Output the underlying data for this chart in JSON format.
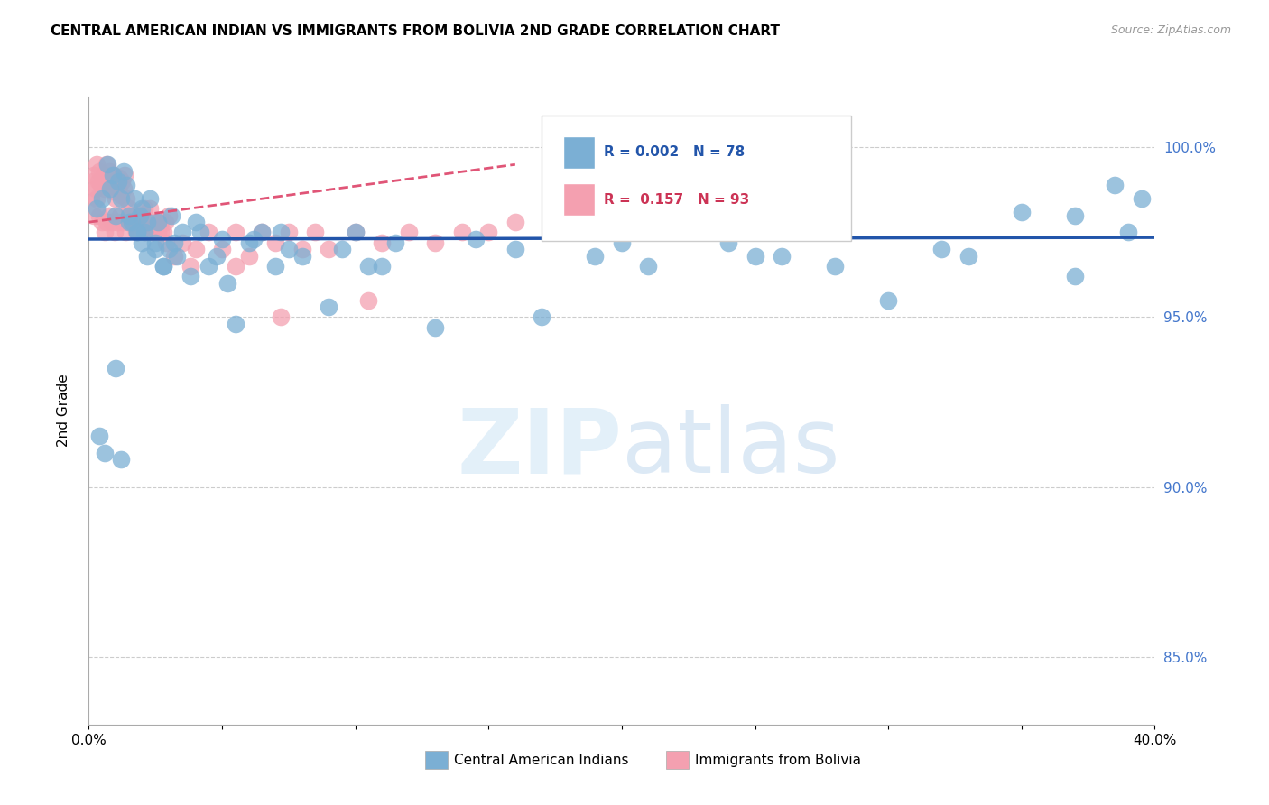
{
  "title": "CENTRAL AMERICAN INDIAN VS IMMIGRANTS FROM BOLIVIA 2ND GRADE CORRELATION CHART",
  "source": "Source: ZipAtlas.com",
  "ylabel": "2nd Grade",
  "ytick_values": [
    85.0,
    90.0,
    95.0,
    100.0
  ],
  "xlim": [
    0.0,
    40.0
  ],
  "ylim": [
    83.0,
    101.5
  ],
  "legend_label1": "Central American Indians",
  "legend_label2": "Immigrants from Bolivia",
  "color_blue": "#7bafd4",
  "color_pink": "#f4a0b0",
  "trendline_blue_color": "#2255aa",
  "trendline_pink_color": "#e05577",
  "blue_scatter_x": [
    0.3,
    0.5,
    0.7,
    0.8,
    0.9,
    1.0,
    1.1,
    1.2,
    1.3,
    1.4,
    1.5,
    1.6,
    1.7,
    1.8,
    1.9,
    2.0,
    2.1,
    2.2,
    2.3,
    2.5,
    2.6,
    2.8,
    3.0,
    3.1,
    3.3,
    3.5,
    3.8,
    4.0,
    4.2,
    4.5,
    5.0,
    5.2,
    5.5,
    6.0,
    6.5,
    7.0,
    7.5,
    8.0,
    9.0,
    10.0,
    10.5,
    11.5,
    13.0,
    14.5,
    16.0,
    17.0,
    19.0,
    21.0,
    24.0,
    26.0,
    28.0,
    30.0,
    32.0,
    33.0,
    35.0,
    37.0,
    38.5,
    39.5,
    0.4,
    0.6,
    1.0,
    1.2,
    1.5,
    1.8,
    2.0,
    2.2,
    2.5,
    2.8,
    3.2,
    4.8,
    6.2,
    7.2,
    9.5,
    11.0,
    20.0,
    25.0,
    37.0,
    39.0
  ],
  "blue_scatter_y": [
    98.2,
    98.5,
    99.5,
    98.8,
    99.2,
    98.0,
    99.0,
    98.5,
    99.3,
    98.9,
    98.0,
    97.8,
    98.5,
    97.5,
    98.0,
    98.2,
    97.5,
    97.8,
    98.5,
    97.2,
    97.8,
    96.5,
    97.0,
    98.0,
    96.8,
    97.5,
    96.2,
    97.8,
    97.5,
    96.5,
    97.3,
    96.0,
    94.8,
    97.2,
    97.5,
    96.5,
    97.0,
    96.8,
    95.3,
    97.5,
    96.5,
    97.2,
    94.7,
    97.3,
    97.0,
    95.0,
    96.8,
    96.5,
    97.2,
    96.8,
    96.5,
    95.5,
    97.0,
    96.8,
    98.1,
    96.2,
    98.9,
    98.5,
    91.5,
    91.0,
    93.5,
    90.8,
    97.8,
    97.5,
    97.2,
    96.8,
    97.0,
    96.5,
    97.2,
    96.8,
    97.3,
    97.5,
    97.0,
    96.5,
    97.2,
    96.8,
    98.0,
    97.5
  ],
  "pink_scatter_x": [
    0.1,
    0.15,
    0.2,
    0.25,
    0.3,
    0.35,
    0.4,
    0.45,
    0.5,
    0.55,
    0.6,
    0.65,
    0.7,
    0.75,
    0.8,
    0.85,
    0.9,
    0.95,
    1.0,
    1.05,
    1.1,
    1.15,
    1.2,
    1.25,
    1.3,
    1.35,
    1.4,
    1.5,
    1.6,
    1.7,
    1.8,
    1.9,
    2.0,
    2.1,
    2.2,
    2.3,
    2.4,
    2.5,
    2.7,
    2.9,
    3.0,
    3.2,
    3.5,
    3.8,
    4.0,
    4.5,
    5.0,
    5.5,
    6.0,
    6.5,
    7.0,
    7.5,
    8.0,
    8.5,
    9.0,
    10.0,
    11.0,
    12.0,
    13.0,
    14.0,
    15.0,
    16.0,
    0.18,
    0.28,
    0.38,
    0.48,
    0.58,
    0.68,
    0.78,
    0.88,
    0.98,
    1.08,
    1.18,
    1.28,
    1.38,
    1.48,
    1.58,
    1.68,
    1.78,
    1.88,
    1.98,
    2.08,
    2.18,
    2.28,
    2.38,
    2.48,
    2.58,
    2.68,
    2.78,
    2.88,
    5.5,
    7.2,
    10.5
  ],
  "pink_scatter_y": [
    98.5,
    99.0,
    99.2,
    98.8,
    99.5,
    99.0,
    99.3,
    98.9,
    99.0,
    99.2,
    98.8,
    99.5,
    99.0,
    99.3,
    98.9,
    99.1,
    98.7,
    99.2,
    98.5,
    99.0,
    98.8,
    99.1,
    98.6,
    99.0,
    98.8,
    99.2,
    98.5,
    98.2,
    97.8,
    98.0,
    97.5,
    97.8,
    98.0,
    97.5,
    97.8,
    98.2,
    97.5,
    97.8,
    97.5,
    97.2,
    98.0,
    96.8,
    97.2,
    96.5,
    97.0,
    97.5,
    97.0,
    97.5,
    96.8,
    97.5,
    97.2,
    97.5,
    97.0,
    97.5,
    97.0,
    97.5,
    97.2,
    97.5,
    97.2,
    97.5,
    97.5,
    97.8,
    98.0,
    98.5,
    98.0,
    97.8,
    97.5,
    97.8,
    98.0,
    97.8,
    97.5,
    97.8,
    98.0,
    97.8,
    97.5,
    97.8,
    98.0,
    97.8,
    97.5,
    97.8,
    98.0,
    98.2,
    97.5,
    97.8,
    97.5,
    97.8,
    97.5,
    97.8,
    97.5,
    97.8,
    96.5,
    95.0,
    95.5
  ],
  "blue_trendline_x": [
    0.0,
    40.0
  ],
  "blue_trendline_y": [
    97.3,
    97.35
  ],
  "pink_trendline_x": [
    0.0,
    16.0
  ],
  "pink_trendline_y": [
    97.8,
    99.5
  ]
}
